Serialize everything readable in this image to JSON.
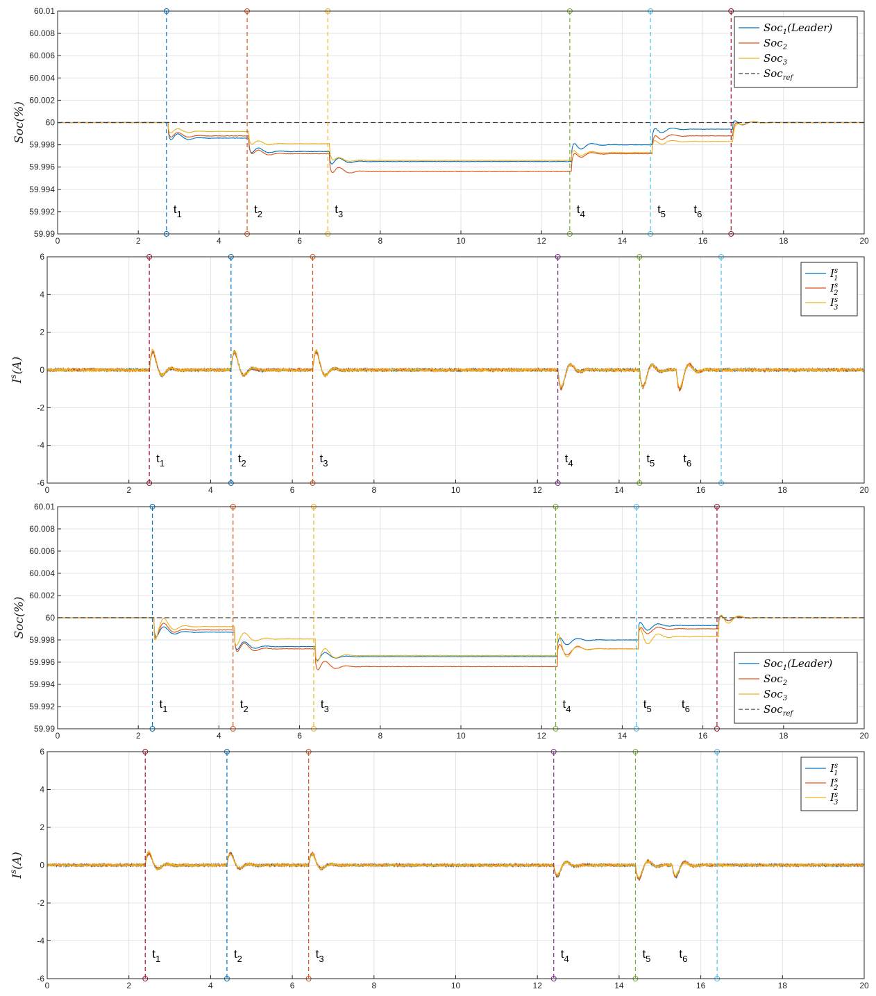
{
  "colors": {
    "series_1": "#0072BD",
    "series_2": "#D95319",
    "series_3": "#EDB120",
    "reference": "#404040",
    "grid": "#e3e3e3",
    "axis": "#262626",
    "marker_dark_red": "#A2142F",
    "marker_blue": "#0072BD",
    "marker_orange": "#D95319",
    "marker_yellow": "#EDB120",
    "marker_purple": "#7E2F8E",
    "marker_green": "#77AC30",
    "marker_cyan": "#4DBEEE"
  },
  "chart_data": [
    {
      "type": "line",
      "ylabel": "Soc(%)",
      "xlim": [
        0,
        20
      ],
      "ylim": [
        59.99,
        60.01
      ],
      "xticks": [
        "0",
        "2",
        "4",
        "6",
        "8",
        "10",
        "12",
        "14",
        "16",
        "18",
        "20"
      ],
      "yticks": [
        "59.99",
        "59.992",
        "59.994",
        "59.996",
        "59.998",
        "60",
        "60.002",
        "60.004",
        "60.006",
        "60.008",
        "60.01"
      ],
      "grid": true,
      "legend_position": "top-right",
      "legend": [
        {
          "main": "Soc",
          "sub": "1",
          "tail": "(Leader)",
          "color": "series_1",
          "dashed": false
        },
        {
          "main": "Soc",
          "sub": "2",
          "tail": "",
          "color": "series_2",
          "dashed": false
        },
        {
          "main": "Soc",
          "sub": "3",
          "tail": "",
          "color": "series_3",
          "dashed": false
        },
        {
          "main": "Soc",
          "sub": "ref",
          "tail": "",
          "color": "reference",
          "dashed": true
        }
      ],
      "series": [
        {
          "name": "Soc1(Leader)",
          "color": "series_1",
          "x": [
            0,
            2.75,
            4.75,
            6.75,
            12.75,
            14.75,
            16.75,
            20
          ],
          "levels": [
            60,
            59.9986,
            59.9974,
            59.9965,
            59.998,
            59.9994,
            60,
            60
          ],
          "transient": [
            -1.2,
            -1.0,
            -1.0,
            1.2,
            1.0,
            0.7
          ]
        },
        {
          "name": "Soc2",
          "color": "series_2",
          "x": [
            0,
            2.75,
            4.75,
            6.75,
            12.75,
            14.75,
            16.75,
            20
          ],
          "levels": [
            60,
            59.9988,
            59.9972,
            59.9956,
            59.9972,
            59.9988,
            60,
            60
          ],
          "transient": [
            -1.0,
            -1.0,
            -1.2,
            1.0,
            1.0,
            0.6
          ]
        },
        {
          "name": "Soc3",
          "color": "series_3",
          "x": [
            0,
            2.75,
            4.75,
            6.75,
            12.75,
            14.75,
            16.75,
            20
          ],
          "levels": [
            60,
            59.9992,
            59.9981,
            59.9966,
            59.9973,
            59.9983,
            60,
            60
          ],
          "transient": [
            -0.8,
            -0.8,
            -0.8,
            0.8,
            0.8,
            0.5
          ]
        },
        {
          "name": "Socref",
          "color": "reference",
          "dashed": true,
          "x": [
            0,
            20
          ],
          "levels": [
            60,
            60
          ]
        }
      ],
      "events": [
        {
          "x": 2.7,
          "label_main": "t",
          "label_sub": "1",
          "color": "marker_blue"
        },
        {
          "x": 4.7,
          "label_main": "t",
          "label_sub": "2",
          "color": "marker_orange"
        },
        {
          "x": 6.7,
          "label_main": "t",
          "label_sub": "3",
          "color": "marker_yellow"
        },
        {
          "x": 12.7,
          "label_main": "t",
          "label_sub": "4",
          "color": "marker_green"
        },
        {
          "x": 14.7,
          "label_main": "t",
          "label_sub": "5",
          "color": "marker_cyan"
        },
        {
          "x": 15.6,
          "label_main": "t",
          "label_sub": "6",
          "color": null
        },
        {
          "x": 16.7,
          "label_main": null,
          "label_sub": null,
          "color": "marker_dark_red"
        }
      ]
    },
    {
      "type": "line",
      "ylabel": "Is(A)",
      "xlim": [
        0,
        20
      ],
      "ylim": [
        -6,
        6
      ],
      "xticks": [
        "0",
        "2",
        "4",
        "6",
        "8",
        "10",
        "12",
        "14",
        "16",
        "18",
        "20"
      ],
      "yticks": [
        "-6",
        "-4",
        "-2",
        "0",
        "2",
        "4",
        "6"
      ],
      "grid": true,
      "legend_position": "top-right",
      "legend": [
        {
          "main": "I",
          "sub": "1",
          "sup": "s",
          "color": "series_1"
        },
        {
          "main": "I",
          "sub": "2",
          "sup": "s",
          "color": "series_2"
        },
        {
          "main": "I",
          "sub": "3",
          "sup": "s",
          "color": "series_3"
        }
      ],
      "series": [
        {
          "name": "I1s",
          "color": "series_1",
          "peaks": [
            1.7,
            1.7,
            1.7,
            -1.6,
            -1.6,
            -1.7
          ],
          "noise": 0.08
        },
        {
          "name": "I2s",
          "color": "series_2",
          "peaks": [
            1.6,
            1.6,
            1.6,
            -1.7,
            -1.5,
            -1.8
          ],
          "noise": 0.08
        },
        {
          "name": "I3s",
          "color": "series_3",
          "peaks": [
            1.8,
            1.7,
            1.8,
            -1.5,
            -1.6,
            -1.6
          ],
          "noise": 0.08
        }
      ],
      "events": [
        {
          "x": 2.5,
          "label_main": "t",
          "label_sub": "1",
          "color": "marker_dark_red"
        },
        {
          "x": 4.5,
          "label_main": "t",
          "label_sub": "2",
          "color": "marker_blue"
        },
        {
          "x": 6.5,
          "label_main": "t",
          "label_sub": "3",
          "color": "marker_orange"
        },
        {
          "x": 12.5,
          "label_main": "t",
          "label_sub": "4",
          "color": "marker_purple"
        },
        {
          "x": 14.5,
          "label_main": "t",
          "label_sub": "5",
          "color": "marker_green"
        },
        {
          "x": 15.4,
          "label_main": "t",
          "label_sub": "6",
          "color": null
        },
        {
          "x": 16.5,
          "label_main": null,
          "label_sub": null,
          "color": "marker_cyan"
        }
      ]
    },
    {
      "type": "line",
      "ylabel": "Soc(%)",
      "xlim": [
        0,
        20
      ],
      "ylim": [
        59.99,
        60.01
      ],
      "xticks": [
        "0",
        "2",
        "4",
        "6",
        "8",
        "10",
        "12",
        "14",
        "16",
        "18",
        "20"
      ],
      "yticks": [
        "59.99",
        "59.992",
        "59.994",
        "59.996",
        "59.998",
        "60",
        "60.002",
        "60.004",
        "60.006",
        "60.008",
        "60.01"
      ],
      "grid": true,
      "legend_position": "bottom-right",
      "legend": [
        {
          "main": "Soc",
          "sub": "1",
          "tail": "(Leader)",
          "color": "series_1",
          "dashed": false
        },
        {
          "main": "Soc",
          "sub": "2",
          "tail": "",
          "color": "series_2",
          "dashed": false
        },
        {
          "main": "Soc",
          "sub": "3",
          "tail": "",
          "color": "series_3",
          "dashed": false
        },
        {
          "main": "Soc",
          "sub": "ref",
          "tail": "",
          "color": "reference",
          "dashed": true
        }
      ],
      "series": [
        {
          "name": "Soc1(Leader)",
          "color": "series_1",
          "x": [
            0,
            2.4,
            4.4,
            6.4,
            12.4,
            14.4,
            16.4,
            20
          ],
          "levels": [
            60,
            59.9987,
            59.9974,
            59.9965,
            59.998,
            59.9993,
            60,
            60
          ],
          "transient": [
            -1.6,
            -1.4,
            -1.2,
            1.4,
            1.4,
            0.8
          ]
        },
        {
          "name": "Soc2",
          "color": "series_2",
          "x": [
            0,
            2.4,
            4.4,
            6.4,
            12.4,
            14.4,
            16.4,
            20
          ],
          "levels": [
            60,
            59.9989,
            59.9972,
            59.9956,
            59.9972,
            59.999,
            60,
            60
          ],
          "transient": [
            -2.0,
            -1.6,
            -1.6,
            1.8,
            1.4,
            0.9
          ]
        },
        {
          "name": "Soc3",
          "color": "series_3",
          "x": [
            0,
            2.4,
            4.4,
            6.4,
            12.4,
            14.4,
            16.4,
            20
          ],
          "levels": [
            60,
            59.9992,
            59.9981,
            59.9966,
            59.9972,
            59.9983,
            60,
            60
          ],
          "transient": [
            -2.4,
            -1.8,
            -2.0,
            2.4,
            2.2,
            1.6
          ]
        },
        {
          "name": "Socref",
          "color": "reference",
          "dashed": true,
          "x": [
            0,
            20
          ],
          "levels": [
            60,
            60
          ]
        }
      ],
      "events": [
        {
          "x": 2.35,
          "label_main": "t",
          "label_sub": "1",
          "color": "marker_blue"
        },
        {
          "x": 4.35,
          "label_main": "t",
          "label_sub": "2",
          "color": "marker_orange"
        },
        {
          "x": 6.35,
          "label_main": "t",
          "label_sub": "3",
          "color": "marker_yellow"
        },
        {
          "x": 12.35,
          "label_main": "t",
          "label_sub": "4",
          "color": "marker_green"
        },
        {
          "x": 14.35,
          "label_main": "t",
          "label_sub": "5",
          "color": "marker_cyan"
        },
        {
          "x": 15.3,
          "label_main": "t",
          "label_sub": "6",
          "color": null
        },
        {
          "x": 16.35,
          "label_main": null,
          "label_sub": null,
          "color": "marker_dark_red"
        }
      ]
    },
    {
      "type": "line",
      "ylabel": "Is(A)",
      "xlim": [
        0,
        20
      ],
      "ylim": [
        -6,
        6
      ],
      "xticks": [
        "0",
        "2",
        "4",
        "6",
        "8",
        "10",
        "12",
        "14",
        "16",
        "18",
        "20"
      ],
      "yticks": [
        "-6",
        "-4",
        "-2",
        "0",
        "2",
        "4",
        "6"
      ],
      "grid": true,
      "legend_position": "top-right",
      "legend": [
        {
          "main": "I",
          "sub": "1",
          "sup": "s",
          "color": "series_1"
        },
        {
          "main": "I",
          "sub": "2",
          "sup": "s",
          "color": "series_2"
        },
        {
          "main": "I",
          "sub": "3",
          "sup": "s",
          "color": "series_3"
        }
      ],
      "series": [
        {
          "name": "I1s",
          "color": "series_1",
          "peaks": [
            1.1,
            1.1,
            1.0,
            -1.1,
            -1.2,
            -1.1
          ],
          "noise": 0.07
        },
        {
          "name": "I2s",
          "color": "series_2",
          "peaks": [
            1.0,
            1.1,
            1.1,
            -1.0,
            -1.3,
            -1.0
          ],
          "noise": 0.07
        },
        {
          "name": "I3s",
          "color": "series_3",
          "peaks": [
            1.2,
            1.0,
            1.0,
            -0.9,
            -1.1,
            -0.9
          ],
          "noise": 0.07
        }
      ],
      "events": [
        {
          "x": 2.4,
          "label_main": "t",
          "label_sub": "1",
          "color": "marker_dark_red"
        },
        {
          "x": 4.4,
          "label_main": "t",
          "label_sub": "2",
          "color": "marker_blue"
        },
        {
          "x": 6.4,
          "label_main": "t",
          "label_sub": "3",
          "color": "marker_orange"
        },
        {
          "x": 12.4,
          "label_main": "t",
          "label_sub": "4",
          "color": "marker_purple"
        },
        {
          "x": 14.4,
          "label_main": "t",
          "label_sub": "5",
          "color": "marker_green"
        },
        {
          "x": 15.3,
          "label_main": "t",
          "label_sub": "6",
          "color": null
        },
        {
          "x": 16.4,
          "label_main": null,
          "label_sub": null,
          "color": "marker_cyan"
        }
      ]
    }
  ]
}
